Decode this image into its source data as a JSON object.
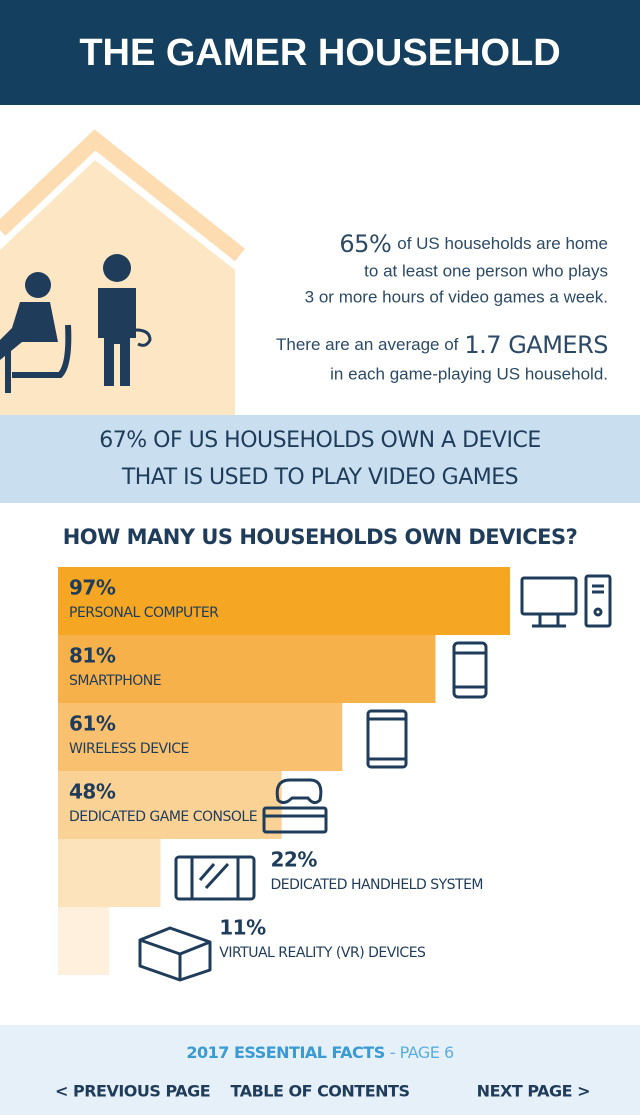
{
  "header": {
    "title": "THE GAMER HOUSEHOLD"
  },
  "intro": {
    "stat1": "65%",
    "line1": "of US households are home",
    "line2": "to at least one person who plays",
    "line3": "3 or more hours of video games a week.",
    "line4": "There are an average of",
    "stat2": "1.7 GAMERS",
    "line5": "in each game-playing US household."
  },
  "banner": {
    "line1": "67% OF US HOUSEHOLDS OWN A DEVICE",
    "line2": "THAT IS USED TO PLAY VIDEO GAMES"
  },
  "chart_data": {
    "type": "bar",
    "orientation": "horizontal",
    "title": "HOW MANY US HOUSEHOLDS OWN DEVICES?",
    "categories": [
      "PERSONAL COMPUTER",
      "SMARTPHONE",
      "WIRELESS DEVICE",
      "DEDICATED GAME CONSOLE",
      "DEDICATED HANDHELD SYSTEM",
      "VIRTUAL REALITY (VR) DEVICES"
    ],
    "values": [
      97,
      81,
      61,
      48,
      22,
      11
    ],
    "value_labels": [
      "97%",
      "81%",
      "61%",
      "48%",
      "22%",
      "11%"
    ],
    "colors": [
      "#f5a623",
      "#f7b14b",
      "#f9c16f",
      "#fbd295",
      "#fde3bb",
      "#fef0dc"
    ],
    "xlim": [
      0,
      100
    ]
  },
  "footer": {
    "edition": "2017 ESSENTIAL FACTS",
    "page": "- PAGE 6",
    "prev": "< PREVIOUS PAGE",
    "toc": "TABLE OF CONTENTS",
    "next": "NEXT PAGE >"
  }
}
